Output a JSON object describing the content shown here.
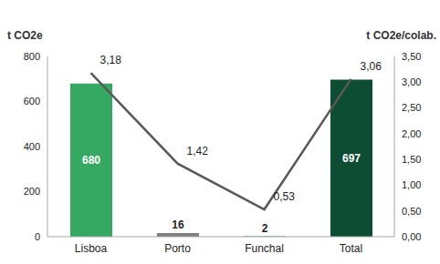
{
  "chart_data": {
    "type": "bar",
    "categories": [
      "Lisboa",
      "Porto",
      "Funchal",
      "Total"
    ],
    "y_label": "t CO2e",
    "y2_label": "t CO2e/colab.",
    "ylim": [
      0,
      800
    ],
    "yticks": [
      0,
      200,
      400,
      600,
      800
    ],
    "y2lim": [
      0,
      3.5
    ],
    "y2ticks": [
      {
        "value": 0,
        "label": "0,00"
      },
      {
        "value": 0.5,
        "label": "0,50"
      },
      {
        "value": 1,
        "label": "1,00"
      },
      {
        "value": 1.5,
        "label": "1,50"
      },
      {
        "value": 2,
        "label": "2,00"
      },
      {
        "value": 2.5,
        "label": "2,50"
      },
      {
        "value": 3,
        "label": "3,00"
      },
      {
        "value": 3.5,
        "label": "3,50"
      }
    ],
    "grid": false,
    "data_labels": true,
    "series": [
      {
        "type": "bar",
        "colors": [
          "#35a862",
          "#7f7f7f",
          "#2f9a6a",
          "#0d4d33"
        ],
        "values": [
          680,
          16,
          2,
          697
        ]
      },
      {
        "type": "line",
        "axis": "y2",
        "color": "#595959",
        "values": [
          3.18,
          1.42,
          0.53,
          3.06
        ],
        "value_labels": [
          "3,18",
          "1,42",
          "0,53",
          "3,06"
        ]
      }
    ]
  }
}
